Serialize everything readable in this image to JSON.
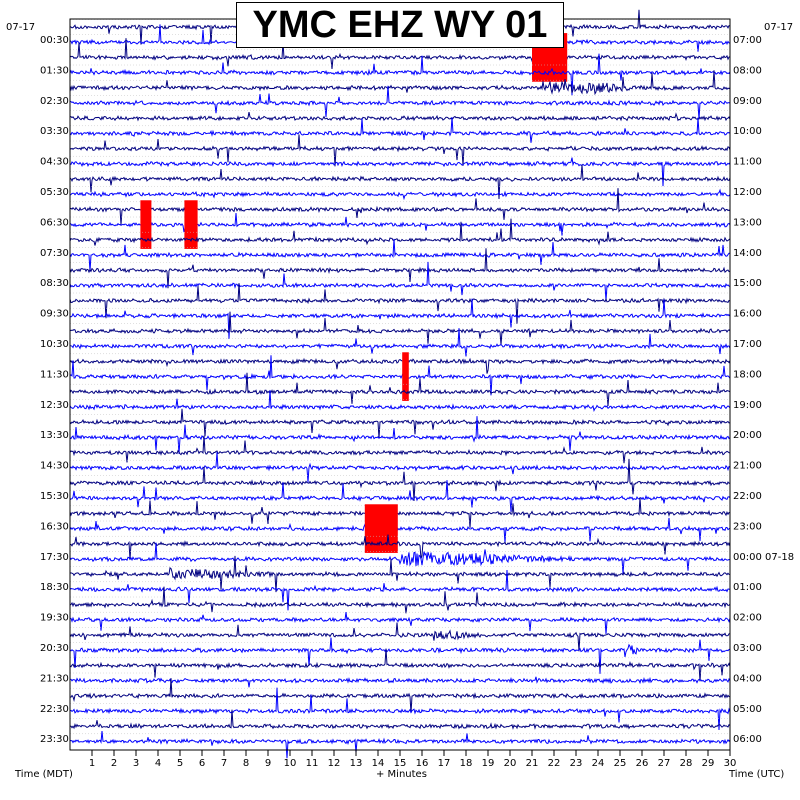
{
  "chart_data": {
    "type": "line",
    "title": "YMC EHZ WY 01",
    "description_labels": {
      "left_date": "07-17",
      "right_date": "07-17",
      "left_axis_label": "Time (MDT)",
      "right_axis_label": "Time (UTC)",
      "x_axis_label": "+ Minutes"
    },
    "xlim": [
      0,
      30
    ],
    "x_ticks": [
      "1",
      "2",
      "3",
      "4",
      "5",
      "6",
      "7",
      "8",
      "9",
      "10",
      "11",
      "12",
      "13",
      "14",
      "15",
      "16",
      "17",
      "18",
      "19",
      "20",
      "21",
      "22",
      "23",
      "24",
      "25",
      "26",
      "27",
      "28",
      "29",
      "30"
    ],
    "left_times": [
      "00:30",
      "01:30",
      "02:30",
      "03:30",
      "04:30",
      "05:30",
      "06:30",
      "07:30",
      "08:30",
      "09:30",
      "10:30",
      "11:30",
      "12:30",
      "13:30",
      "14:30",
      "15:30",
      "16:30",
      "17:30",
      "18:30",
      "19:30",
      "20:30",
      "21:30",
      "22:30",
      "23:30"
    ],
    "right_times": [
      "07:00",
      "08:00",
      "09:00",
      "10:00",
      "11:00",
      "12:00",
      "13:00",
      "14:00",
      "15:00",
      "16:00",
      "17:00",
      "18:00",
      "19:00",
      "20:00",
      "21:00",
      "22:00",
      "23:00",
      "00:00 07-18",
      "01:00",
      "02:00",
      "03:00",
      "04:00",
      "05:00",
      "06:00"
    ],
    "trace_count": 48,
    "trace_colors": [
      "#000080",
      "#0000ff",
      "#000000",
      "#ff0000"
    ],
    "events": [
      {
        "trace": 2,
        "minute": 21.0,
        "duration": 1.6,
        "amplitude": "clipped"
      },
      {
        "trace": 4,
        "minute": 21.5,
        "duration": 5.0,
        "amplitude": "coda"
      },
      {
        "trace": 13,
        "minute": 3.2,
        "duration": 0.5,
        "amplitude": "clipped"
      },
      {
        "trace": 13,
        "minute": 5.2,
        "duration": 0.6,
        "amplitude": "clipped"
      },
      {
        "trace": 23,
        "minute": 15.1,
        "duration": 0.3,
        "amplitude": "clipped"
      },
      {
        "trace": 33,
        "minute": 13.4,
        "duration": 1.5,
        "amplitude": "clipped"
      },
      {
        "trace": 35,
        "minute": 15.0,
        "duration": 8.0,
        "amplitude": "coda"
      },
      {
        "trace": 36,
        "minute": 4.5,
        "duration": 5.0,
        "amplitude": "swell"
      },
      {
        "trace": 40,
        "minute": 16.5,
        "duration": 2.0,
        "amplitude": "swell"
      },
      {
        "trace": 41,
        "minute": 25.2,
        "duration": 0.8,
        "amplitude": "swell"
      }
    ],
    "grid": true
  }
}
